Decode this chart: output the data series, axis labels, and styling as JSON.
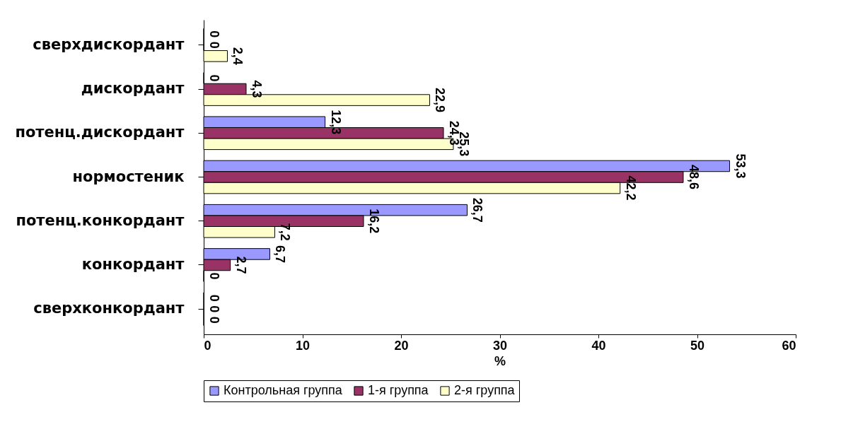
{
  "chart_data": {
    "type": "bar",
    "orientation": "horizontal",
    "xlabel": "%",
    "categories": [
      "сверхдискордант",
      "дискордант",
      "потенц.дискордант",
      "нормостеник",
      "потенц.конкордант",
      "конкордант",
      "сверхконкордант"
    ],
    "series": [
      {
        "name": "Контрольная группа",
        "color": "#9999ff",
        "values": [
          0,
          0,
          12.3,
          53.3,
          26.7,
          6.7,
          0
        ],
        "value_labels": [
          "0",
          "0",
          "12,3",
          "53,3",
          "26,7",
          "6,7",
          "0"
        ]
      },
      {
        "name": "1-я группа",
        "color": "#993366",
        "values": [
          0,
          4.3,
          24.3,
          48.6,
          16.2,
          2.7,
          0
        ],
        "value_labels": [
          "0",
          "4,3",
          "24,3",
          "48,6",
          "16,2",
          "2,7",
          "0"
        ]
      },
      {
        "name": "2-я группа",
        "color": "#ffffcc",
        "values": [
          2.4,
          22.9,
          25.3,
          42.2,
          7.2,
          0,
          0
        ],
        "value_labels": [
          "2,4",
          "22,9",
          "25,3",
          "42,2",
          "7,2",
          "0",
          "0"
        ]
      }
    ],
    "xlim": [
      0,
      60
    ],
    "xticks": [
      0,
      10,
      20,
      30,
      40,
      50,
      60
    ],
    "legend": "bottom"
  }
}
